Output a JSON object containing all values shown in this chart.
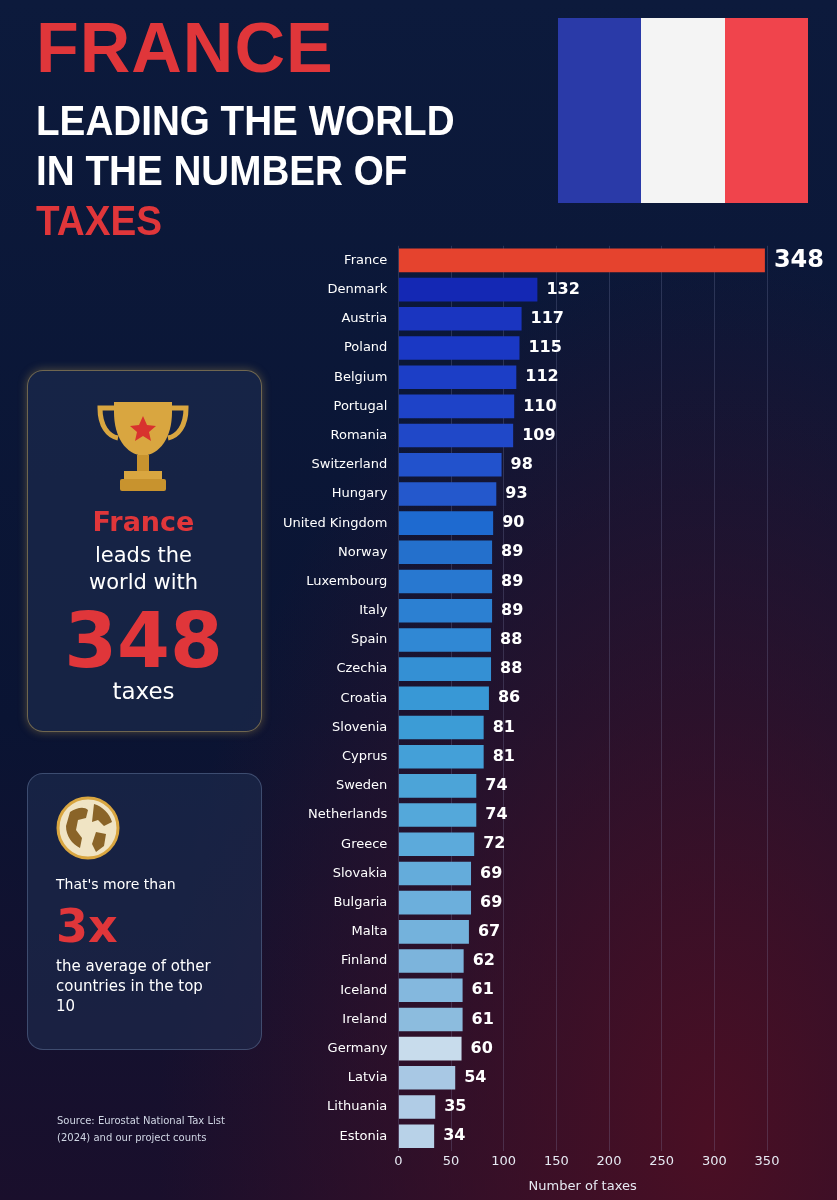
{
  "chart_data": {
    "type": "bar",
    "orientation": "horizontal",
    "title": "FRANCE",
    "subtitle": "LEADING THE WORLD IN THE NUMBER OF TAXES",
    "xlabel": "Number of taxes",
    "categories": [
      "France",
      "Denmark",
      "Austria",
      "Poland",
      "Belgium",
      "Portugal",
      "Romania",
      "Switzerland",
      "Hungary",
      "United Kingdom",
      "Norway",
      "Luxembourg",
      "Italy",
      "Spain",
      "Czechia",
      "Croatia",
      "Slovenia",
      "Cyprus",
      "Sweden",
      "Netherlands",
      "Greece",
      "Slovakia",
      "Bulgaria",
      "Malta",
      "Finland",
      "Iceland",
      "Ireland",
      "Germany",
      "Latvia",
      "Lithuania",
      "Estonia"
    ],
    "values": [
      348,
      132,
      117,
      115,
      112,
      110,
      109,
      98,
      93,
      90,
      89,
      89,
      89,
      88,
      88,
      86,
      81,
      81,
      74,
      74,
      72,
      69,
      69,
      67,
      62,
      61,
      61,
      60,
      54,
      35,
      34
    ],
    "colors": [
      "#e5432e",
      "#1428b4",
      "#1a35c0",
      "#1a38c4",
      "#1c3ec6",
      "#1e43c8",
      "#2048c8",
      "#2252cc",
      "#2458cc",
      "#1e6ad0",
      "#2470cc",
      "#2878d0",
      "#2c80d2",
      "#3088d4",
      "#3490d4",
      "#3898d6",
      "#3c9cd6",
      "#44a0d8",
      "#4ca4d8",
      "#54a8da",
      "#5caadb",
      "#64acdb",
      "#6cafdc",
      "#74b2dc",
      "#7cb4dc",
      "#84b8de",
      "#8cbcde",
      "#c8dcec",
      "#a8c8e4",
      "#b0cce6",
      "#b8d2e8"
    ],
    "xlim": [
      0,
      350
    ],
    "xticks": [
      0,
      50,
      100,
      150,
      200,
      250,
      300,
      350
    ],
    "grid": "x",
    "data_labels": true,
    "annotations": [
      "France",
      "leads the world with",
      "348",
      "taxes",
      "That's more than",
      "3x",
      "the average of other countries in the top 10",
      "Source: Eurostat National Tax List (2024) and our project counts"
    ]
  }
}
